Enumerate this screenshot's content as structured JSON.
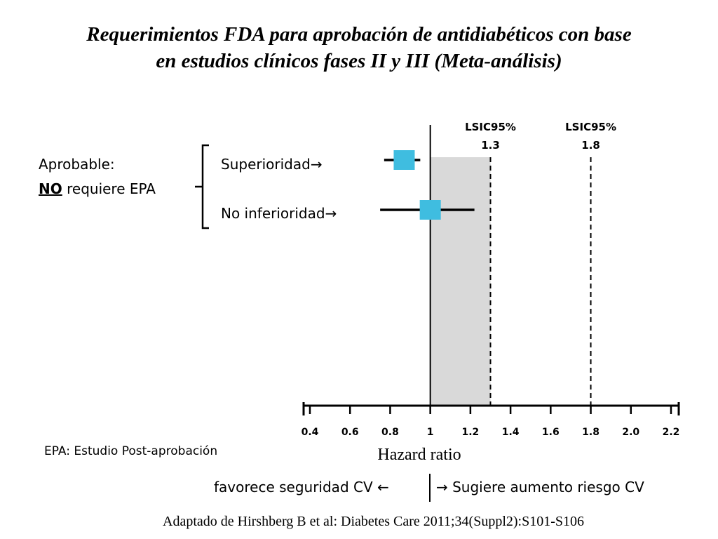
{
  "title": {
    "line1": "Requerimientos FDA para aprobación de antidiabéticos con base",
    "line2": "en estudios clínicos fases II y III (Meta-análisis)"
  },
  "legend": {
    "aprobable": "Aprobable:",
    "no_word": "NO",
    "requiere": " requiere EPA"
  },
  "footnote": "EPA: Estudio Post-aprobación",
  "direction": {
    "left": "favorece seguridad CV ←",
    "right": "→ Sugiere aumento riesgo CV"
  },
  "citation": "Adaptado de Hirshberg B et al: Diabetes Care 2011;34(Suppl2):S101-S106",
  "chart_data": {
    "type": "forest",
    "xlabel": "Hazard ratio",
    "xlim": [
      0.4,
      2.2
    ],
    "xticks": [
      "0.4",
      "0.6",
      "0.8",
      "1",
      "1.2",
      "1.4",
      "1.6",
      "1.8",
      "2.0",
      "2.2"
    ],
    "reference_line": 1.0,
    "shaded_region": [
      1.0,
      1.3
    ],
    "thresholds": [
      {
        "value": 1.3,
        "label_top": "LSIC95%",
        "label_bottom": "1.3"
      },
      {
        "value": 1.8,
        "label_top": "LSIC95%",
        "label_bottom": "1.8"
      }
    ],
    "studies": [
      {
        "name": "Superioridad→",
        "point": 0.87,
        "ci_low": 0.77,
        "ci_high": 0.95
      },
      {
        "name": "No inferioridad→",
        "point": 1.0,
        "ci_low": 0.75,
        "ci_high": 1.22
      }
    ],
    "colors": {
      "marker": "#3fbde0",
      "shade": "#d9d9d9",
      "line": "#000000"
    }
  }
}
